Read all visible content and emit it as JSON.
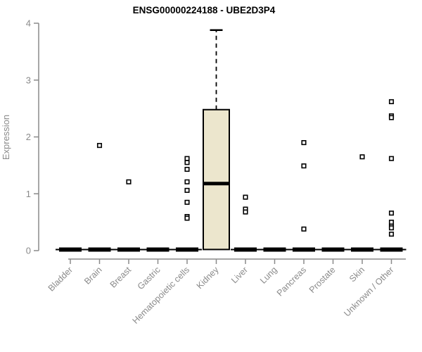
{
  "chart_data": {
    "type": "boxplot",
    "title": "ENSG00000224188 - UBE2D3P4",
    "ylabel": "Expression",
    "xlabel": "",
    "ylim": [
      0,
      4
    ],
    "yticks": [
      0,
      1,
      2,
      3,
      4
    ],
    "grid": "off",
    "legend": "none",
    "categories": [
      "Bladder",
      "Brain",
      "Breast",
      "Gastric",
      "Hematopoietic cells",
      "Kidney",
      "Liver",
      "Lung",
      "Pancreas",
      "Prostate",
      "Skin",
      "Unknown / Other"
    ],
    "boxes": [
      {
        "category": "Bladder",
        "collapsed_at": 0,
        "outliers": []
      },
      {
        "category": "Brain",
        "collapsed_at": 0,
        "outliers": [
          1.85
        ]
      },
      {
        "category": "Breast",
        "collapsed_at": 0,
        "outliers": [
          1.21
        ]
      },
      {
        "category": "Gastric",
        "collapsed_at": 0,
        "outliers": []
      },
      {
        "category": "Hematopoietic cells",
        "collapsed_at": 0,
        "outliers": [
          1.62,
          1.55,
          1.43,
          1.21,
          1.06,
          0.85,
          0.6,
          0.57
        ]
      },
      {
        "category": "Kidney",
        "q1": 0.02,
        "median": 1.18,
        "q3": 2.48,
        "whisker_high": 3.88,
        "outliers": []
      },
      {
        "category": "Liver",
        "collapsed_at": 0,
        "outliers": [
          0.94,
          0.73,
          0.68
        ]
      },
      {
        "category": "Lung",
        "collapsed_at": 0,
        "outliers": []
      },
      {
        "category": "Pancreas",
        "collapsed_at": 0,
        "outliers": [
          1.9,
          1.49,
          0.38
        ]
      },
      {
        "category": "Prostate",
        "collapsed_at": 0,
        "outliers": []
      },
      {
        "category": "Skin",
        "collapsed_at": 0,
        "outliers": [
          1.65
        ]
      },
      {
        "category": "Unknown / Other",
        "collapsed_at": 0,
        "outliers": [
          2.62,
          2.37,
          2.34,
          1.62,
          0.66,
          0.5,
          0.43,
          0.4,
          0.29
        ]
      }
    ],
    "colors": {
      "box_fill": "#ece6cd",
      "box_stroke": "#000000",
      "median": "#000000",
      "outlier_stroke": "#000000",
      "outlier_fill": "#ffffff",
      "axis": "#8a8a8a",
      "title": "#000000",
      "background": "#ffffff"
    }
  }
}
